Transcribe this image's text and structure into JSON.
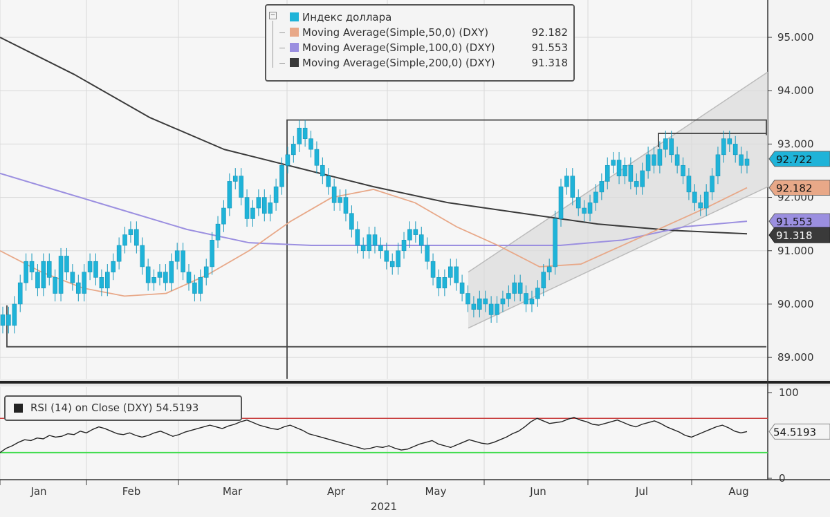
{
  "chart_data": [
    {
      "type": "candlestick",
      "title": "",
      "year_label": "2021",
      "months": [
        "Jan",
        "Feb",
        "Mar",
        "Apr",
        "May",
        "Jun",
        "Jul",
        "Aug"
      ],
      "y_ticks": [
        "89.000",
        "90.000",
        "91.000",
        "92.000",
        "93.000",
        "94.000",
        "95.000"
      ],
      "ylim": [
        88.6,
        95.7
      ],
      "colors": {
        "price": "#1fb3d8",
        "ma50": "#e8a888",
        "ma100": "#9b8fe0",
        "ma200": "#3a3a3a",
        "channel": "#c8c8c8"
      },
      "legend": [
        {
          "name": "Индекс доллара",
          "value": "",
          "color": "#1fb3d8"
        },
        {
          "name": "Moving Average(Simple,50,0) (DXY)",
          "value": "92.182",
          "color": "#e8a888"
        },
        {
          "name": "Moving Average(Simple,100,0) (DXY)",
          "value": "91.553",
          "color": "#9b8fe0"
        },
        {
          "name": "Moving Average(Simple,200,0) (DXY)",
          "value": "91.318",
          "color": "#3a3a3a"
        }
      ],
      "last_value_tags": [
        {
          "label": "92.722",
          "value": 92.722,
          "color": "#1fb3d8"
        },
        {
          "label": "92.182",
          "value": 92.182,
          "color": "#e8a888"
        },
        {
          "label": "91.553",
          "value": 91.553,
          "color": "#9b8fe0"
        },
        {
          "label": "91.318",
          "value": 91.318,
          "color": "#3a3a3a"
        }
      ],
      "price_closes": [
        89.8,
        89.6,
        90.0,
        90.4,
        90.8,
        90.6,
        90.3,
        90.8,
        90.5,
        90.2,
        90.9,
        90.6,
        90.4,
        90.2,
        90.6,
        90.8,
        90.5,
        90.3,
        90.6,
        90.8,
        91.1,
        91.3,
        91.4,
        91.1,
        90.7,
        90.4,
        90.5,
        90.6,
        90.4,
        90.8,
        91.0,
        90.6,
        90.4,
        90.2,
        90.5,
        90.7,
        91.2,
        91.5,
        91.8,
        92.3,
        92.4,
        92.0,
        91.6,
        91.8,
        92.0,
        91.7,
        91.9,
        92.2,
        92.6,
        92.8,
        93.0,
        93.3,
        93.1,
        92.9,
        92.6,
        92.4,
        92.2,
        91.9,
        92.0,
        91.7,
        91.4,
        91.1,
        91.0,
        91.3,
        91.1,
        91.0,
        90.8,
        90.7,
        91.0,
        91.2,
        91.4,
        91.3,
        91.1,
        90.8,
        90.5,
        90.3,
        90.5,
        90.7,
        90.4,
        90.2,
        90.0,
        89.9,
        90.1,
        90.0,
        89.8,
        90.0,
        90.1,
        90.2,
        90.4,
        90.2,
        90.0,
        90.1,
        90.3,
        90.6,
        90.7,
        91.6,
        92.2,
        92.4,
        92.0,
        91.8,
        91.7,
        91.9,
        92.1,
        92.3,
        92.6,
        92.7,
        92.4,
        92.6,
        92.3,
        92.2,
        92.5,
        92.8,
        92.6,
        92.9,
        93.1,
        92.8,
        92.6,
        92.4,
        92.1,
        91.9,
        91.8,
        92.1,
        92.4,
        92.8,
        93.1,
        93.0,
        92.8,
        92.6,
        92.72
      ],
      "ma50": [
        91.0,
        90.6,
        90.3,
        90.15,
        90.2,
        90.55,
        91.0,
        91.55,
        92.0,
        92.15,
        91.9,
        91.45,
        91.1,
        90.7,
        90.75,
        91.1,
        91.45,
        91.8,
        92.182
      ],
      "ma100": [
        92.45,
        92.1,
        91.75,
        91.4,
        91.15,
        91.1,
        91.1,
        91.1,
        91.1,
        91.1,
        91.2,
        91.45,
        91.553
      ],
      "ma200": [
        95.0,
        94.3,
        93.5,
        92.9,
        92.55,
        92.2,
        91.9,
        91.7,
        91.5,
        91.38,
        91.318
      ],
      "resistance_level": 93.45,
      "support_level": 89.2,
      "jul_high": 93.2,
      "channel_lower": [
        [
          89.55,
          92.2
        ]
      ],
      "channel_upper": [
        [
          90.6,
          94.35
        ]
      ]
    },
    {
      "type": "line",
      "title": "",
      "legend": [
        {
          "name": "RSI (14)  on Close (DXY)",
          "value": "54.5193"
        }
      ],
      "y_ticks": [
        "0",
        "100"
      ],
      "ylim": [
        0,
        100
      ],
      "overbought": 70,
      "oversold": 30,
      "last_label": "54.5193",
      "values": [
        30,
        35,
        38,
        42,
        45,
        44,
        47,
        46,
        50,
        48,
        49,
        52,
        51,
        55,
        53,
        57,
        60,
        58,
        55,
        52,
        51,
        53,
        50,
        48,
        50,
        53,
        55,
        52,
        49,
        51,
        54,
        56,
        58,
        60,
        62,
        60,
        58,
        61,
        63,
        66,
        68,
        65,
        62,
        60,
        58,
        57,
        60,
        62,
        59,
        56,
        52,
        50,
        48,
        46,
        44,
        42,
        40,
        38,
        36,
        34,
        35,
        37,
        36,
        38,
        35,
        33,
        34,
        37,
        40,
        42,
        44,
        40,
        38,
        36,
        39,
        42,
        45,
        43,
        41,
        40,
        42,
        45,
        48,
        52,
        55,
        60,
        66,
        70,
        67,
        64,
        65,
        66,
        69,
        71,
        68,
        66,
        63,
        62,
        64,
        66,
        68,
        65,
        62,
        60,
        63,
        65,
        67,
        64,
        60,
        57,
        54,
        50,
        48,
        51,
        54,
        57,
        60,
        62,
        59,
        55,
        53,
        54.5
      ]
    }
  ]
}
